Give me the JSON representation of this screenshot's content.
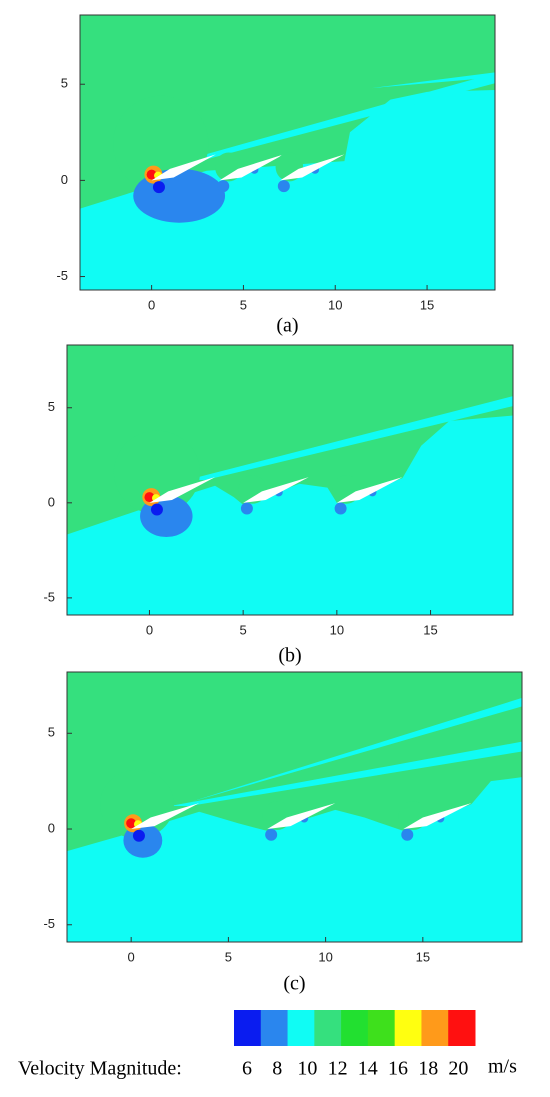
{
  "chart_data": [
    {
      "type": "contour",
      "caption": "(a)",
      "xlim": [
        -3.9,
        18.7
      ],
      "ylim": [
        -5.7,
        8.6
      ],
      "xticks": [
        0,
        5,
        10,
        15
      ],
      "yticks": [
        -5,
        0,
        5
      ]
    },
    {
      "type": "contour",
      "caption": "(b)",
      "xlim": [
        -4.4,
        19.4
      ],
      "ylim": [
        -5.9,
        8.3
      ],
      "xticks": [
        0,
        5,
        10,
        15
      ],
      "yticks": [
        -5,
        0,
        5
      ]
    },
    {
      "type": "contour",
      "caption": "(c)",
      "xlim": [
        -3.3,
        20.1
      ],
      "ylim": [
        -5.9,
        8.2
      ],
      "xticks": [
        0,
        5,
        10,
        15
      ],
      "yticks": [
        -5,
        0,
        5
      ]
    }
  ],
  "colorbar": {
    "title": "Velocity Magnitude:",
    "ticks": [
      6,
      8,
      10,
      12,
      14,
      16,
      18,
      20
    ],
    "unit": "m/s",
    "colors": [
      "#0a1cf0",
      "#2a86ee",
      "#10fcf4",
      "#35e07e",
      "#22e030",
      "#3ee01c",
      "#ffff10",
      "#ff9a1a",
      "#ff1010"
    ]
  }
}
